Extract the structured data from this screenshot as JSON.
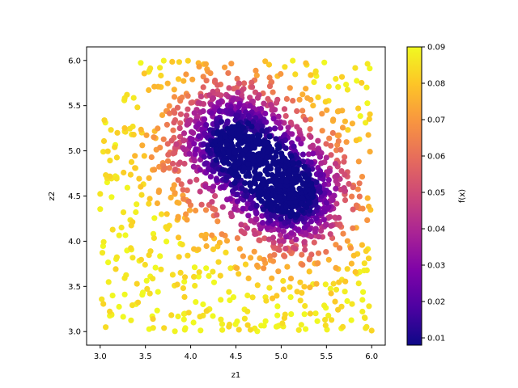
{
  "chart_data": {
    "type": "scatter",
    "title": "",
    "xlabel": "z1",
    "ylabel": "z2",
    "colorbar_label": "f(x)",
    "colormap": "plasma",
    "xlim": [
      2.85,
      6.15
    ],
    "ylim": [
      2.85,
      6.15
    ],
    "xticks": [
      "3.0",
      "3.5",
      "4.0",
      "4.5",
      "5.0",
      "5.5",
      "6.0"
    ],
    "yticks": [
      "3.0",
      "3.5",
      "4.0",
      "4.5",
      "5.0",
      "5.5",
      "6.0"
    ],
    "color_range": [
      0.008,
      0.09
    ],
    "colorbar_ticks": [
      "0.01",
      "0.02",
      "0.03",
      "0.04",
      "0.05",
      "0.06",
      "0.07",
      "0.08",
      "0.09"
    ],
    "distribution": {
      "point_count_estimate": 2000,
      "x_range": [
        3.0,
        6.0
      ],
      "y_range": [
        3.0,
        6.0
      ],
      "clusters": [
        {
          "center": [
            4.45,
            5.1
          ],
          "spread": 0.3,
          "min_value": 0.01
        },
        {
          "center": [
            5.15,
            4.5
          ],
          "spread": 0.28,
          "min_value": 0.01
        }
      ],
      "background_value": 0.088
    }
  }
}
